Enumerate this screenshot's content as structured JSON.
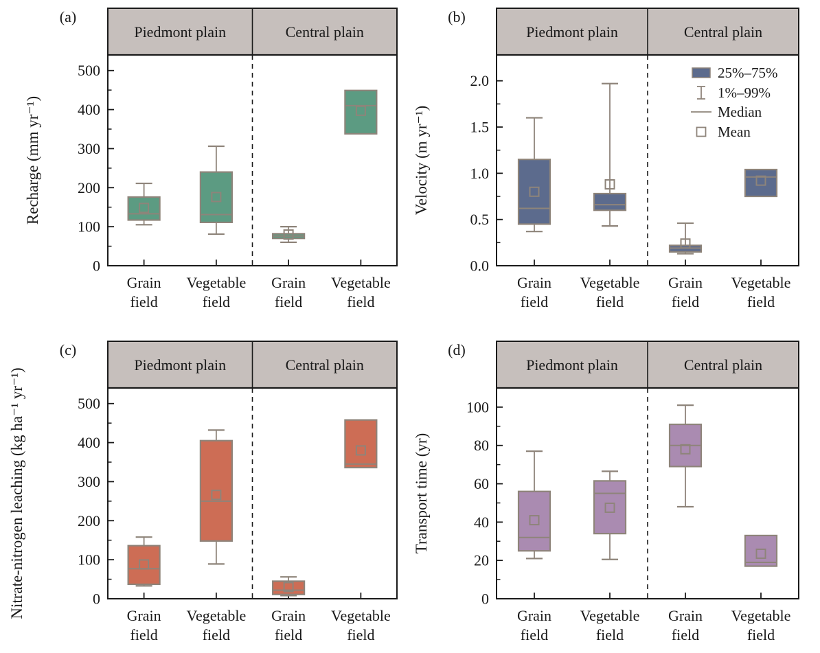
{
  "figure": {
    "description": "Four-panel box plot figure comparing Piedmont plain and Central plain grain and vegetable fields"
  },
  "style": {
    "header_fill": "#c6bfbc",
    "axis_color": "#1a1a1a",
    "text_color": "#1a1a1a",
    "box_stroke": "#8e847a",
    "background": "#ffffff"
  },
  "legend": {
    "position": "top-right of panel (b)",
    "items": [
      {
        "symbol": "box",
        "label": "25%–75%"
      },
      {
        "symbol": "whisker",
        "label": "1%–99%"
      },
      {
        "symbol": "line",
        "label": "Median"
      },
      {
        "symbol": "square",
        "label": "Mean"
      }
    ]
  },
  "chart_data": [
    {
      "type": "box",
      "panel_label": "(a)",
      "ylabel": "Recharge (mm yr⁻¹)",
      "group_headers": [
        "Piedmont plain",
        "Central plain"
      ],
      "categories": [
        [
          "Grain",
          "field"
        ],
        [
          "Vegetable",
          "field"
        ],
        [
          "Grain",
          "field"
        ],
        [
          "Vegetable",
          "field"
        ]
      ],
      "ylim": [
        0,
        540
      ],
      "ytick_values": [
        0,
        100,
        200,
        300,
        400,
        500
      ],
      "ytick_labels": [
        "0",
        "100",
        "200",
        "300",
        "400",
        "500"
      ],
      "minor_tick_step": 50,
      "box_fill": "#5c9b82",
      "show_legend": false,
      "boxes": [
        {
          "group": "Piedmont plain",
          "category": "Grain field",
          "p1": 105,
          "q1": 117,
          "median": 133,
          "mean": 148,
          "q3": 176,
          "p99": 211
        },
        {
          "group": "Piedmont plain",
          "category": "Vegetable field",
          "p1": 81,
          "q1": 111,
          "median": 131,
          "mean": 176,
          "q3": 240,
          "p99": 306
        },
        {
          "group": "Central plain",
          "category": "Grain field",
          "p1": 60,
          "q1": 70,
          "median": 76,
          "mean": 80,
          "q3": 82,
          "p99": 100
        },
        {
          "group": "Central plain",
          "category": "Vegetable field",
          "p1": null,
          "q1": 338,
          "median": 410,
          "mean": 397,
          "q3": 449,
          "p99": null
        }
      ]
    },
    {
      "type": "box",
      "panel_label": "(b)",
      "ylabel": "Velocity (m yr⁻¹)",
      "group_headers": [
        "Piedmont plain",
        "Central plain"
      ],
      "categories": [
        [
          "Grain",
          "field"
        ],
        [
          "Vegetable",
          "field"
        ],
        [
          "Grain",
          "field"
        ],
        [
          "Vegetable",
          "field"
        ]
      ],
      "ylim": [
        0,
        2.28
      ],
      "ytick_values": [
        0,
        0.5,
        1.0,
        1.5,
        2.0
      ],
      "ytick_labels": [
        "0.0",
        "0.5",
        "1.0",
        "1.5",
        "2.0"
      ],
      "minor_tick_step": 0.25,
      "box_fill": "#5c6b8d",
      "show_legend": true,
      "boxes": [
        {
          "group": "Piedmont plain",
          "category": "Grain field",
          "p1": 0.37,
          "q1": 0.45,
          "median": 0.62,
          "mean": 0.8,
          "q3": 1.15,
          "p99": 1.6
        },
        {
          "group": "Piedmont plain",
          "category": "Vegetable field",
          "p1": 0.43,
          "q1": 0.6,
          "median": 0.66,
          "mean": 0.88,
          "q3": 0.78,
          "p99": 1.97
        },
        {
          "group": "Central plain",
          "category": "Grain field",
          "p1": 0.13,
          "q1": 0.15,
          "median": 0.19,
          "mean": 0.24,
          "q3": 0.22,
          "p99": 0.46
        },
        {
          "group": "Central plain",
          "category": "Vegetable field",
          "p1": null,
          "q1": 0.75,
          "median": 0.96,
          "mean": 0.92,
          "q3": 1.04,
          "p99": null
        }
      ]
    },
    {
      "type": "box",
      "panel_label": "(c)",
      "ylabel": "Nitrate-nitrogen leaching (kg ha⁻¹ yr⁻¹)",
      "group_headers": [
        "Piedmont plain",
        "Central plain"
      ],
      "categories": [
        [
          "Grain",
          "field"
        ],
        [
          "Vegetable",
          "field"
        ],
        [
          "Grain",
          "field"
        ],
        [
          "Vegetable",
          "field"
        ]
      ],
      "ylim": [
        0,
        540
      ],
      "ytick_values": [
        0,
        100,
        200,
        300,
        400,
        500
      ],
      "ytick_labels": [
        "0",
        "100",
        "200",
        "300",
        "400",
        "500"
      ],
      "minor_tick_step": 50,
      "box_fill": "#cd6d55",
      "show_legend": false,
      "boxes": [
        {
          "group": "Piedmont plain",
          "category": "Grain field",
          "p1": 33,
          "q1": 37,
          "median": 77,
          "mean": 88,
          "q3": 136,
          "p99": 158
        },
        {
          "group": "Piedmont plain",
          "category": "Vegetable field",
          "p1": 89,
          "q1": 148,
          "median": 250,
          "mean": 266,
          "q3": 405,
          "p99": 432
        },
        {
          "group": "Central plain",
          "category": "Grain field",
          "p1": 8,
          "q1": 11,
          "median": 22,
          "mean": 30,
          "q3": 45,
          "p99": 56
        },
        {
          "group": "Central plain",
          "category": "Vegetable field",
          "p1": null,
          "q1": 336,
          "median": 345,
          "mean": 380,
          "q3": 458,
          "p99": null
        }
      ]
    },
    {
      "type": "box",
      "panel_label": "(d)",
      "ylabel": "Transport time (yr)",
      "group_headers": [
        "Piedmont plain",
        "Central plain"
      ],
      "categories": [
        [
          "Grain",
          "field"
        ],
        [
          "Vegetable",
          "field"
        ],
        [
          "Grain",
          "field"
        ],
        [
          "Vegetable",
          "field"
        ]
      ],
      "ylim": [
        0,
        110
      ],
      "ytick_values": [
        0,
        20,
        40,
        60,
        80,
        100
      ],
      "ytick_labels": [
        "0",
        "20",
        "40",
        "60",
        "80",
        "100"
      ],
      "minor_tick_step": 10,
      "box_fill": "#aa8bb1",
      "show_legend": false,
      "boxes": [
        {
          "group": "Piedmont plain",
          "category": "Grain field",
          "p1": 21,
          "q1": 25,
          "median": 32,
          "mean": 41,
          "q3": 56,
          "p99": 77
        },
        {
          "group": "Piedmont plain",
          "category": "Vegetable field",
          "p1": 20.5,
          "q1": 34,
          "median": 55,
          "mean": 47.5,
          "q3": 61.5,
          "p99": 66.5
        },
        {
          "group": "Central plain",
          "category": "Grain field",
          "p1": 48,
          "q1": 69,
          "median": 80,
          "mean": 78,
          "q3": 91,
          "p99": 101
        },
        {
          "group": "Central plain",
          "category": "Vegetable field",
          "p1": null,
          "q1": 17,
          "median": 19,
          "mean": 23.5,
          "q3": 33,
          "p99": null
        }
      ]
    }
  ]
}
